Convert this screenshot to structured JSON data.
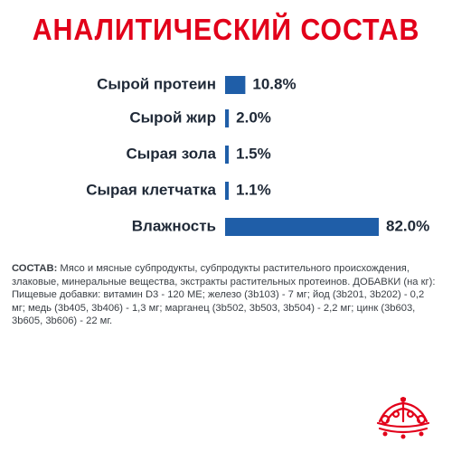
{
  "title": "АНАЛИТИЧЕСКИЙ СОСТАВ",
  "colors": {
    "title": "#e2001a",
    "bar": "#1f5ea8",
    "text": "#1f2937",
    "logo": "#e2001a"
  },
  "chart_data": {
    "type": "bar",
    "orientation": "horizontal",
    "categories": [
      "Сырой протеин",
      "Сырой жир",
      "Сырая зола",
      "Сырая клетчатка",
      "Влажность"
    ],
    "values": [
      10.8,
      2.0,
      1.5,
      1.1,
      82.0
    ],
    "value_labels": [
      "10.8%",
      "2.0%",
      "1.5%",
      "1.1%",
      "82.0%"
    ],
    "xlim": [
      0,
      82
    ],
    "grid": false,
    "legend": "none"
  },
  "composition": {
    "lead": "СОСТАВ:",
    "text": " Мясо и мясные субпродукты, субпродукты растительного происхождения, злаковые, минеральные вещества, экстракты растительных протеинов. ДОБАВКИ (на кг): Пищевые добавки: витамин D3 - 120 МЕ; железо (3b103) - 7 мг; йод (3b201, 3b202) - 0,2 мг; медь (3b405, 3b406) - 1,3 мг; марганец (3b502, 3b503, 3b504) - 2,2 мг; цинк (3b603, 3b605, 3b606) - 22 мг."
  },
  "logo": {
    "icon": "crown-icon"
  }
}
